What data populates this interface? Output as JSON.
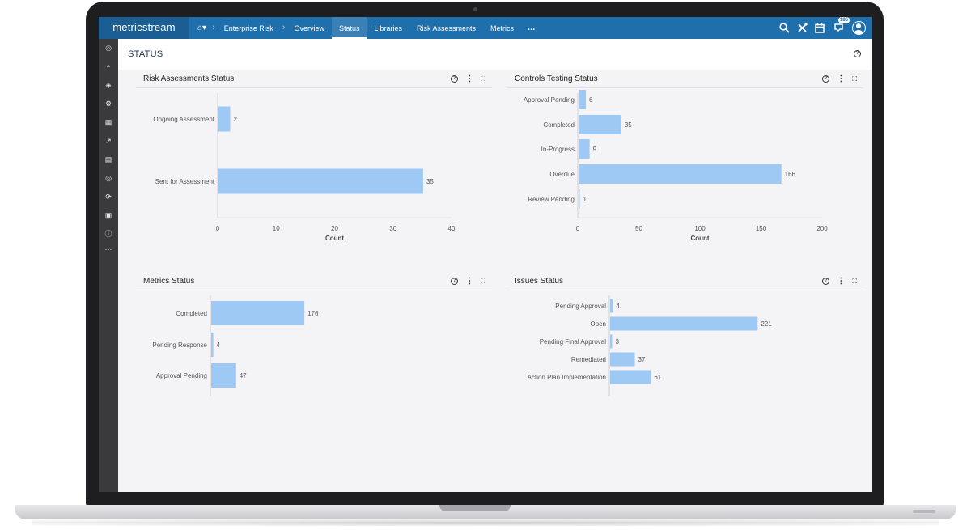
{
  "app": {
    "logo_text": "metricstream",
    "nav": {
      "home_icon": "home-icon",
      "breadcrumb": "Enterprise Risk",
      "items": [
        "Overview",
        "Status",
        "Libraries",
        "Risk Assessments",
        "Metrics"
      ],
      "active": "Status",
      "more": "..."
    },
    "top_icons": [
      "search-icon",
      "tools-icon",
      "calendar-icon",
      "notifications-icon",
      "user-avatar-icon"
    ],
    "notification_count": "186",
    "accent_color": "#1f6fad",
    "bar_color": "#9ec9f5"
  },
  "sidebar": {
    "icons": [
      "dashboard-icon",
      "analytics-icon",
      "risk-icon",
      "settings-icon",
      "reports-icon",
      "chart-icon",
      "document-icon",
      "targets-icon",
      "refresh-icon",
      "calendar-icon",
      "help-icon",
      "more-icon"
    ]
  },
  "page": {
    "title": "STATUS"
  },
  "chart_data": [
    {
      "type": "bar",
      "orientation": "horizontal",
      "title": "Risk Assessments Status",
      "categories": [
        "Ongoing Assessment",
        "Sent for Assessment"
      ],
      "values": [
        2,
        35
      ],
      "xlabel": "Count",
      "xlim": [
        0,
        40
      ],
      "xticks": [
        0,
        10,
        20,
        30,
        40
      ]
    },
    {
      "type": "bar",
      "orientation": "horizontal",
      "title": "Controls Testing Status",
      "categories": [
        "Approval Pending",
        "Completed",
        "In-Progress",
        "Overdue",
        "Review Pending"
      ],
      "values": [
        6,
        35,
        9,
        166,
        1
      ],
      "xlabel": "Count",
      "xlim": [
        0,
        200
      ],
      "xticks": [
        0,
        50,
        100,
        150,
        200
      ]
    },
    {
      "type": "bar",
      "orientation": "horizontal",
      "title": "Metrics Status",
      "categories": [
        "Completed",
        "Pending Response",
        "Approval Pending"
      ],
      "values": [
        176,
        4,
        47
      ],
      "xlabel": "",
      "xlim": [
        0,
        500
      ]
    },
    {
      "type": "bar",
      "orientation": "horizontal",
      "title": "Issues Status",
      "categories": [
        "Pending Approval",
        "Open",
        "Pending Final Approval",
        "Remediated",
        "Action Plan Implementation"
      ],
      "values": [
        4,
        221,
        3,
        37,
        61
      ],
      "xlabel": "",
      "xlim": [
        0,
        360
      ]
    }
  ]
}
